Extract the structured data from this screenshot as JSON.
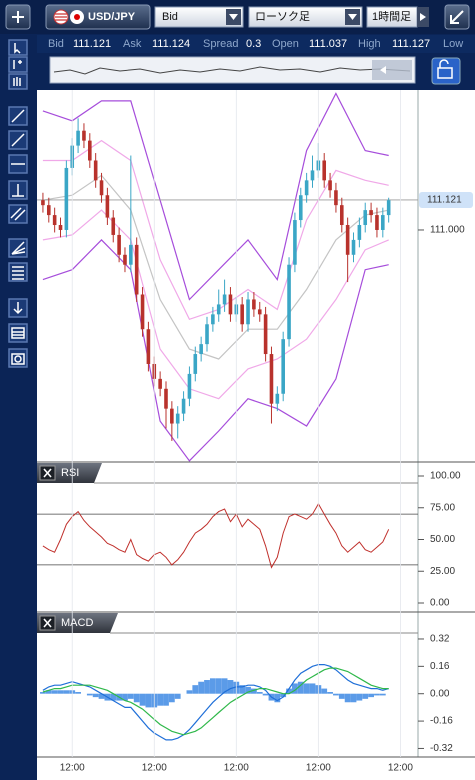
{
  "toolbar": {
    "symbol": "USD/JPY",
    "price_type": "Bid",
    "chart_type": "ローソク足",
    "timeframe": "1時間足"
  },
  "quote": [
    {
      "label": "Bid",
      "value": 111.121
    },
    {
      "label": "Ask",
      "value": 111.124
    },
    {
      "label": "Spread",
      "value": 0.3
    },
    {
      "label": "Open",
      "value": 111.037
    },
    {
      "label": "High",
      "value": 111.127
    },
    {
      "label": "Low"
    }
  ],
  "chart_data": [
    {
      "type": "candlestick",
      "up_color": "#3aa6c6",
      "down_color": "#b8322c",
      "open": [
        111.12,
        111.1,
        111.06,
        111.02,
        111.0,
        111.25,
        111.34,
        111.4,
        111.36,
        111.28,
        111.2,
        111.14,
        111.05,
        110.98,
        110.9,
        110.86,
        110.94,
        110.74,
        110.6,
        110.46,
        110.4,
        110.36,
        110.28,
        110.22,
        110.26,
        110.32,
        110.42,
        110.5,
        110.54,
        110.62,
        110.66,
        110.7,
        110.74,
        110.66,
        110.7,
        110.62,
        110.72,
        110.68,
        110.66,
        110.5,
        110.3,
        110.34,
        110.56,
        110.86,
        111.04,
        111.14,
        111.2,
        111.24,
        111.28,
        111.2,
        111.16,
        111.1,
        111.02,
        110.9,
        110.96,
        111.02,
        111.08,
        111.06,
        111.0,
        111.06
      ],
      "high": [
        111.15,
        111.13,
        111.09,
        111.05,
        111.28,
        111.37,
        111.45,
        111.43,
        111.39,
        111.31,
        111.23,
        111.17,
        111.08,
        111.01,
        110.93,
        111.3,
        110.97,
        110.77,
        110.63,
        110.49,
        110.43,
        110.39,
        110.31,
        110.29,
        110.35,
        110.45,
        110.53,
        110.57,
        110.65,
        110.69,
        110.76,
        110.8,
        110.77,
        110.73,
        110.73,
        110.75,
        110.75,
        110.71,
        110.69,
        110.53,
        110.37,
        110.59,
        110.89,
        111.07,
        111.17,
        111.23,
        111.3,
        111.35,
        111.31,
        111.23,
        111.19,
        111.13,
        111.05,
        110.99,
        111.05,
        111.11,
        111.11,
        111.09,
        111.09,
        111.13
      ],
      "low": [
        111.07,
        111.03,
        110.99,
        110.97,
        110.97,
        111.22,
        111.31,
        111.33,
        111.25,
        111.17,
        111.11,
        111.02,
        110.95,
        110.87,
        110.83,
        110.83,
        110.71,
        110.57,
        110.43,
        110.37,
        110.33,
        110.2,
        110.15,
        110.16,
        110.23,
        110.29,
        110.39,
        110.47,
        110.51,
        110.59,
        110.63,
        110.67,
        110.63,
        110.63,
        110.59,
        110.59,
        110.65,
        110.63,
        110.47,
        110.22,
        110.27,
        110.31,
        110.53,
        110.83,
        111.01,
        111.11,
        111.17,
        111.21,
        111.17,
        111.13,
        111.07,
        110.99,
        110.79,
        110.87,
        110.93,
        110.99,
        111.03,
        110.97,
        110.97,
        111.03
      ],
      "close": [
        111.1,
        111.06,
        111.02,
        111.0,
        111.25,
        111.34,
        111.4,
        111.36,
        111.28,
        111.2,
        111.14,
        111.05,
        110.98,
        110.9,
        110.86,
        110.94,
        110.74,
        110.6,
        110.46,
        110.4,
        110.36,
        110.28,
        110.22,
        110.26,
        110.32,
        110.42,
        110.5,
        110.54,
        110.62,
        110.66,
        110.7,
        110.74,
        110.66,
        110.7,
        110.62,
        110.72,
        110.68,
        110.66,
        110.5,
        110.3,
        110.34,
        110.56,
        110.86,
        111.04,
        111.14,
        111.2,
        111.24,
        111.28,
        111.2,
        111.16,
        111.1,
        111.02,
        110.9,
        110.96,
        111.02,
        111.08,
        111.06,
        111.0,
        111.06,
        111.12
      ],
      "bands": {
        "x": [
          0,
          5,
          10,
          15,
          20,
          25,
          30,
          35,
          40,
          45,
          50,
          55,
          59
        ],
        "series": [
          {
            "color": "#a64ddb",
            "values": [
              111.48,
              111.44,
              111.52,
              111.52,
              111.12,
              110.72,
              110.84,
              110.96,
              110.8,
              111.32,
              111.55,
              111.32,
              111.3
            ]
          },
          {
            "color": "#f0a8e8",
            "values": [
              111.28,
              111.28,
              111.36,
              111.28,
              110.88,
              110.64,
              110.68,
              110.76,
              110.68,
              111.04,
              111.24,
              111.2,
              111.18
            ]
          },
          {
            "color": "#c4c4c4",
            "values": [
              111.12,
              111.14,
              111.22,
              111.08,
              110.72,
              110.52,
              110.48,
              110.6,
              110.6,
              110.76,
              110.96,
              111.06,
              111.08
            ]
          },
          {
            "color": "#f0a8e8",
            "values": [
              110.96,
              110.98,
              111.08,
              110.96,
              110.52,
              110.36,
              110.32,
              110.44,
              110.48,
              110.56,
              110.72,
              110.92,
              110.96
            ]
          },
          {
            "color": "#a64ddb",
            "values": [
              110.8,
              110.84,
              110.96,
              110.84,
              110.23,
              110.07,
              110.19,
              110.32,
              110.28,
              110.21,
              110.4,
              110.84,
              110.86
            ]
          }
        ]
      },
      "last_price": 111.121,
      "ylim": [
        110.065,
        111.556
      ],
      "yticks": [
        {
          "value": 111,
          "label": "111.000"
        }
      ]
    },
    {
      "type": "line",
      "title": "RSI",
      "color": "#c0302c",
      "values": [
        45,
        42,
        40,
        50,
        62,
        68,
        72,
        65,
        60,
        56,
        52,
        47,
        45,
        42,
        40,
        50,
        38,
        35,
        33,
        38,
        40,
        36,
        30,
        34,
        40,
        48,
        55,
        58,
        62,
        68,
        72,
        74,
        64,
        70,
        60,
        66,
        62,
        58,
        45,
        28,
        36,
        55,
        68,
        70,
        68,
        66,
        70,
        78,
        70,
        62,
        55,
        45,
        40,
        44,
        48,
        42,
        40,
        44,
        48,
        58
      ],
      "levels": [
        70,
        30
      ],
      "ylim": [
        0,
        100
      ],
      "yticks": [
        {
          "value": 100,
          "label": "100.00"
        },
        {
          "value": 75,
          "label": "75.00"
        },
        {
          "value": 50,
          "label": "50.00"
        },
        {
          "value": 25,
          "label": "25.00"
        },
        {
          "value": 0,
          "label": "0.00"
        }
      ]
    },
    {
      "type": "macd",
      "title": "MACD",
      "series": [
        {
          "color": "#1f6fd8",
          "values": [
            0.02,
            0.04,
            0.05,
            0.05,
            0.06,
            0.07,
            0.06,
            0.05,
            0.04,
            0.02,
            0.0,
            -0.02,
            -0.04,
            -0.06,
            -0.08,
            -0.08,
            -0.12,
            -0.16,
            -0.2,
            -0.23,
            -0.25,
            -0.27,
            -0.27,
            -0.26,
            -0.24,
            -0.21,
            -0.17,
            -0.13,
            -0.09,
            -0.05,
            -0.02,
            0.01,
            0.03,
            0.04,
            0.04,
            0.05,
            0.05,
            0.04,
            0.02,
            -0.02,
            -0.04,
            -0.02,
            0.03,
            0.08,
            0.12,
            0.14,
            0.16,
            0.17,
            0.17,
            0.16,
            0.14,
            0.11,
            0.08,
            0.06,
            0.05,
            0.04,
            0.03,
            0.03,
            0.02,
            0.03
          ]
        },
        {
          "color": "#2fb84a",
          "values": [
            0.01,
            0.02,
            0.03,
            0.03,
            0.04,
            0.05,
            0.05,
            0.05,
            0.05,
            0.04,
            0.03,
            0.02,
            0.0,
            -0.02,
            -0.04,
            -0.05,
            -0.07,
            -0.09,
            -0.12,
            -0.15,
            -0.18,
            -0.2,
            -0.22,
            -0.23,
            -0.24,
            -0.23,
            -0.22,
            -0.2,
            -0.17,
            -0.14,
            -0.11,
            -0.08,
            -0.05,
            -0.03,
            -0.01,
            0.01,
            0.02,
            0.03,
            0.03,
            0.02,
            0.01,
            0.0,
            0.0,
            0.02,
            0.05,
            0.08,
            0.1,
            0.12,
            0.14,
            0.15,
            0.15,
            0.14,
            0.13,
            0.11,
            0.09,
            0.07,
            0.05,
            0.04,
            0.03,
            0.03
          ]
        }
      ],
      "histogram": {
        "color": "#5b9be8",
        "values": [
          0.01,
          0.02,
          0.02,
          0.02,
          0.02,
          0.02,
          0.01,
          0.0,
          -0.01,
          -0.02,
          -0.03,
          -0.04,
          -0.04,
          -0.04,
          -0.04,
          -0.03,
          -0.05,
          -0.07,
          -0.08,
          -0.08,
          -0.07,
          -0.07,
          -0.05,
          -0.03,
          0.0,
          0.02,
          0.05,
          0.07,
          0.08,
          0.09,
          0.09,
          0.09,
          0.08,
          0.07,
          0.05,
          0.04,
          0.03,
          0.01,
          -0.01,
          -0.04,
          -0.05,
          -0.02,
          0.03,
          0.06,
          0.07,
          0.06,
          0.06,
          0.05,
          0.03,
          0.01,
          -0.01,
          -0.03,
          -0.05,
          -0.05,
          -0.04,
          -0.03,
          -0.02,
          -0.01,
          -0.01,
          0.0
        ]
      },
      "ylim": [
        -0.37,
        0.39
      ],
      "yticks": [
        0.32,
        0.16,
        {
          "value": 0,
          "label": "0.00"
        },
        -0.16,
        -0.32
      ],
      "xticks": [
        {
          "value": 5,
          "label": "12:00"
        },
        {
          "value": 19,
          "label": "12:00"
        },
        {
          "value": 33,
          "label": "12:00"
        },
        {
          "value": 47,
          "label": "12:00"
        },
        {
          "value": 61,
          "label": "12:00"
        }
      ]
    }
  ]
}
